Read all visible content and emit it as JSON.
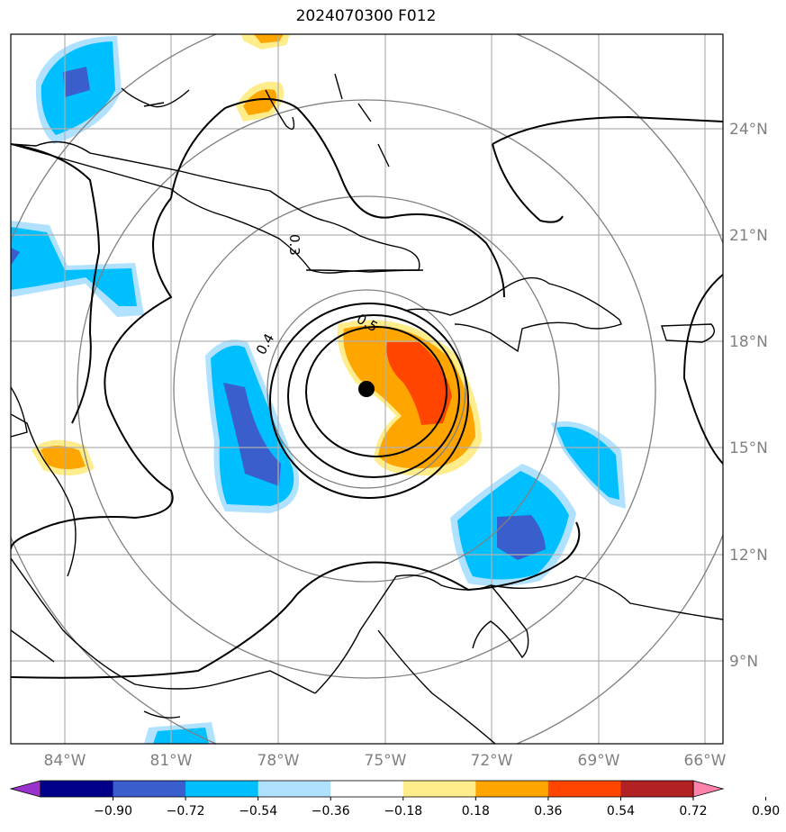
{
  "title": "2024070300 F012",
  "map": {
    "lat_labels": [
      "24°N",
      "21°N",
      "18°N",
      "15°N",
      "12°N",
      "9°N"
    ],
    "lon_labels": [
      "84°W",
      "81°W",
      "78°W",
      "75°W",
      "72°W",
      "69°W",
      "66°W"
    ],
    "contour_labels": [
      "0.3",
      "0.4",
      "0.5"
    ],
    "storm_center": {
      "lat": 16.7,
      "lon": -75.7
    },
    "colors": {
      "coast": "#000000",
      "grid": "#b0b0b0",
      "range_rings": "#808080"
    }
  },
  "colorbar": {
    "ticks": [
      "−0.90",
      "−0.72",
      "−0.54",
      "−0.36",
      "−0.18",
      "0.18",
      "0.36",
      "0.54",
      "0.72",
      "0.90"
    ],
    "colors": [
      "#9932cc",
      "#00008b",
      "#3a5fcd",
      "#00bfff",
      "#b0e2ff",
      "#ffffff",
      "#ffec8b",
      "#ffa500",
      "#ff4500",
      "#b22222",
      "#ff82ab"
    ]
  }
}
